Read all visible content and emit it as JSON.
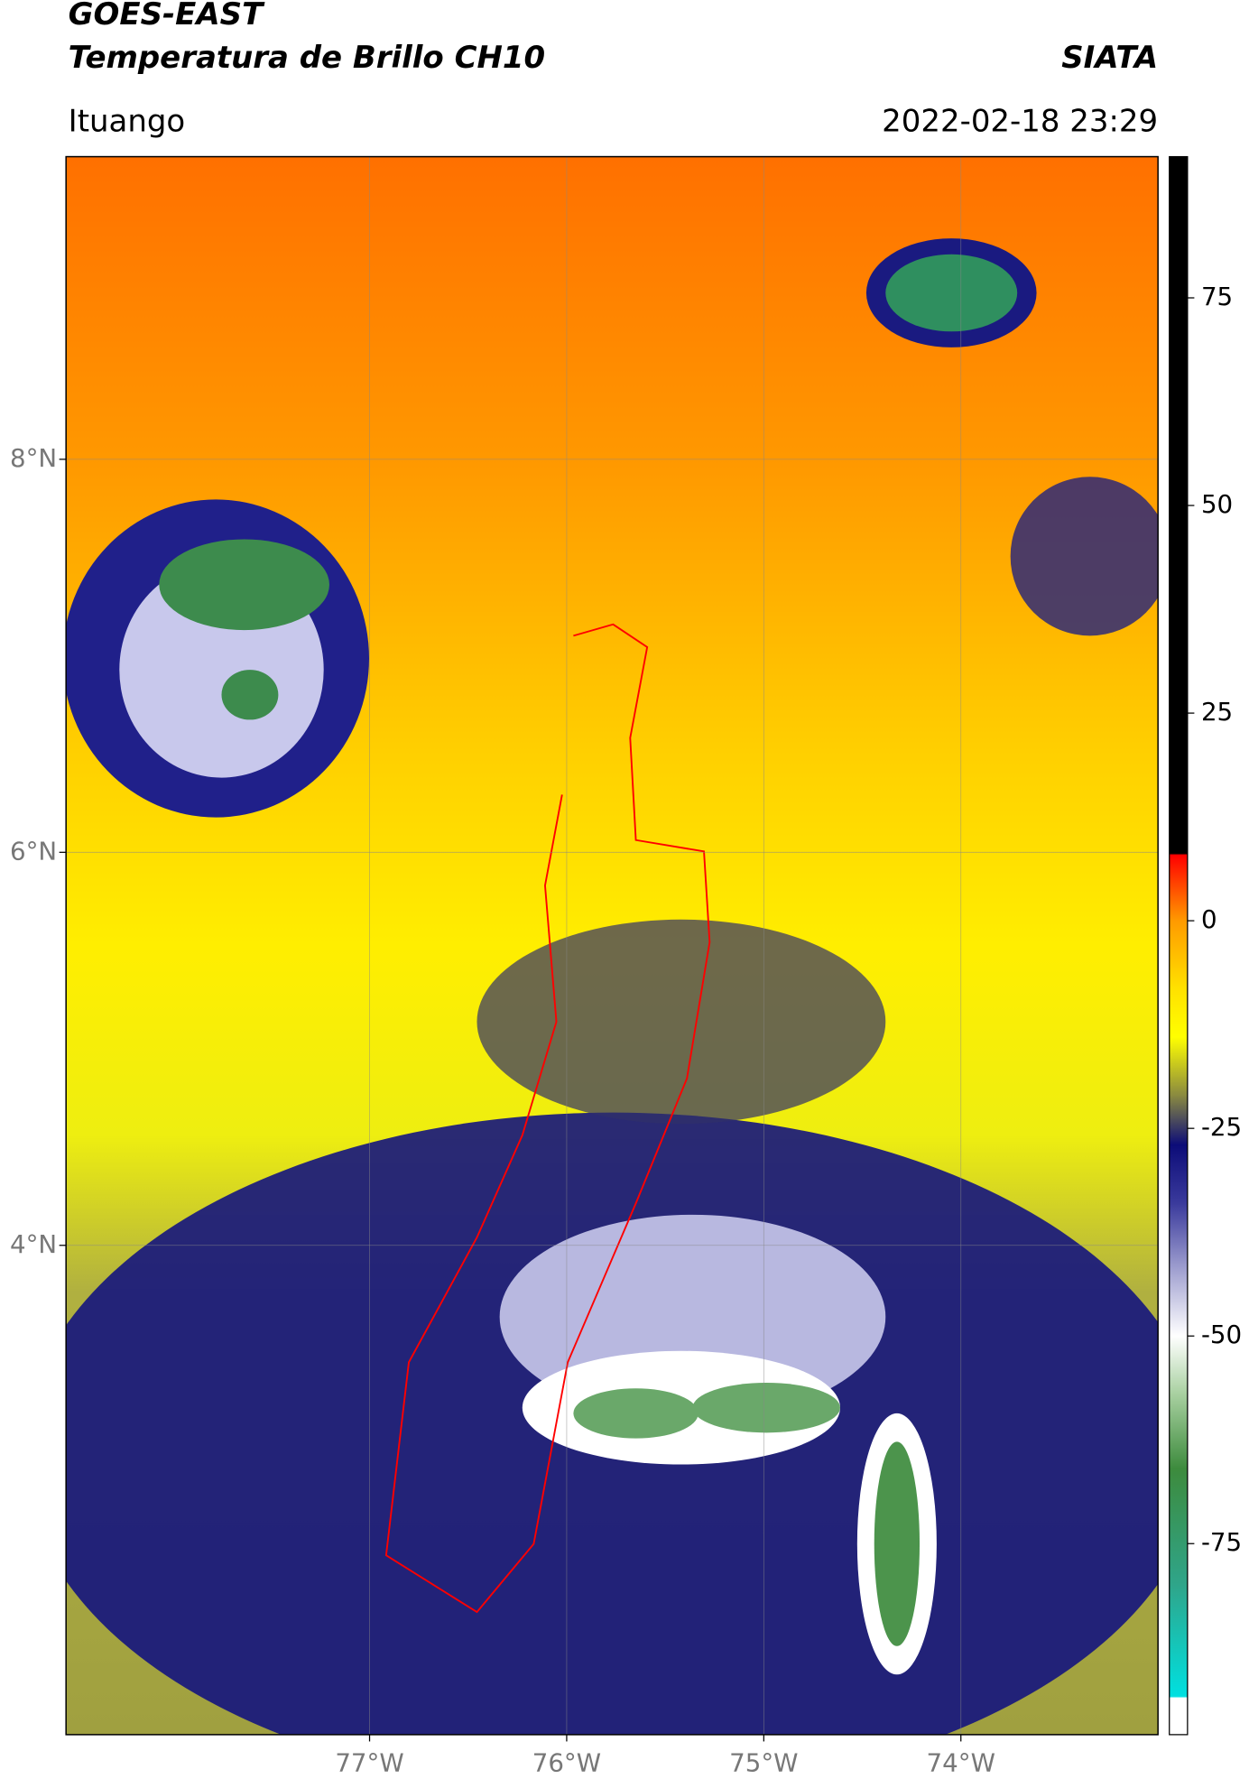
{
  "header": {
    "title": "GOES-EAST",
    "subtitle": "Temperatura de Brillo CH10",
    "source": "SIATA",
    "location": "Ituango",
    "datetime": "2022-02-18 23:29"
  },
  "map": {
    "xlim": [
      -78.54,
      -73.0
    ],
    "ylim": [
      1.51,
      9.54
    ],
    "xticks": [
      {
        "value": -77,
        "label": "77°W"
      },
      {
        "value": -76,
        "label": "76°W"
      },
      {
        "value": -75,
        "label": "75°W"
      },
      {
        "value": -74,
        "label": "74°W"
      }
    ],
    "yticks": [
      {
        "value": 4,
        "label": "4°N"
      },
      {
        "value": 6,
        "label": "6°N"
      },
      {
        "value": 8,
        "label": "8°N"
      }
    ],
    "grid": true
  },
  "colorbar": {
    "lim": [
      -98,
      92
    ],
    "ticks": [
      -75,
      -50,
      -25,
      0,
      25,
      50,
      75
    ],
    "stops": [
      {
        "value": -98,
        "color": "#ffffff"
      },
      {
        "value": -93.6,
        "color": "#ffffff"
      },
      {
        "value": -93.4,
        "color": "#00e0e0"
      },
      {
        "value": -80,
        "color": "#2fa58a"
      },
      {
        "value": -66,
        "color": "#3d8b3d"
      },
      {
        "value": -57,
        "color": "#a8d0a0"
      },
      {
        "value": -50,
        "color": "#ffffff"
      },
      {
        "value": -42,
        "color": "#a0a0d0"
      },
      {
        "value": -34,
        "color": "#3a3a9c"
      },
      {
        "value": -27,
        "color": "#0c0c78"
      },
      {
        "value": -21,
        "color": "#8a8a40"
      },
      {
        "value": -14,
        "color": "#ffff00"
      },
      {
        "value": -8,
        "color": "#ffe000"
      },
      {
        "value": 0,
        "color": "#ff9a00"
      },
      {
        "value": 7.9,
        "color": "#ff0000"
      },
      {
        "value": 8.1,
        "color": "#000000"
      },
      {
        "value": 92,
        "color": "#000000"
      }
    ]
  }
}
